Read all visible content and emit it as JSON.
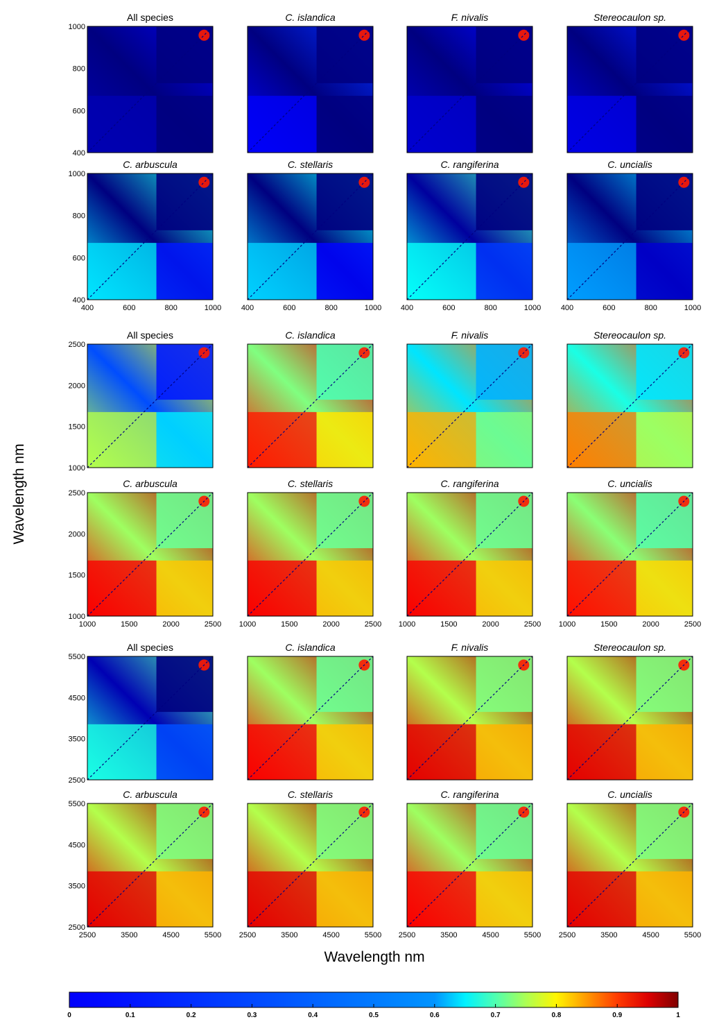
{
  "chart_data": {
    "type": "heatmap",
    "xlabel": "Wavelength nm",
    "ylabel": "Wavelength nm",
    "colorbar": {
      "min": 0,
      "max": 1,
      "ticks": [
        "0",
        "0.1",
        "0.2",
        "0.3",
        "0.4",
        "0.5",
        "0.6",
        "0.7",
        "0.8",
        "0.9",
        "1"
      ],
      "colormap": "jet"
    },
    "panel_titles": [
      "All species",
      "C. islandica",
      "F. nivalis",
      "Stereocaulon sp.",
      "C. arbuscula",
      "C. stellaris",
      "C. rangiferina",
      "C. uncialis"
    ],
    "groups": [
      {
        "range": [
          400,
          1000
        ],
        "yticks": [
          "400",
          "600",
          "800",
          "1000"
        ],
        "xticks": [
          "400",
          "600",
          "800",
          "1000"
        ],
        "panels": [
          {
            "title": "All species",
            "level": 0.05
          },
          {
            "title": "C. islandica",
            "level": 0.12
          },
          {
            "title": "F. nivalis",
            "level": 0.08
          },
          {
            "title": "Stereocaulon sp.",
            "level": 0.1
          },
          {
            "title": "C. arbuscula",
            "level": 0.35
          },
          {
            "title": "C. stellaris",
            "level": 0.33
          },
          {
            "title": "C. rangiferina",
            "level": 0.38
          },
          {
            "title": "C. uncialis",
            "level": 0.28
          }
        ]
      },
      {
        "range": [
          1000,
          2500
        ],
        "yticks": [
          "1000",
          "1500",
          "2000",
          "2500"
        ],
        "xticks": [
          "1000",
          "1500",
          "2000",
          "2500"
        ],
        "panels": [
          {
            "title": "All species",
            "level": 0.55
          },
          {
            "title": "C. islandica",
            "level": 0.85
          },
          {
            "title": "F. nivalis",
            "level": 0.7
          },
          {
            "title": "Stereocaulon sp.",
            "level": 0.75
          },
          {
            "title": "C. arbuscula",
            "level": 0.88
          },
          {
            "title": "C. stellaris",
            "level": 0.88
          },
          {
            "title": "C. rangiferina",
            "level": 0.88
          },
          {
            "title": "C. uncialis",
            "level": 0.86
          }
        ]
      },
      {
        "range": [
          2500,
          5500
        ],
        "yticks": [
          "2500",
          "3500",
          "4500",
          "5500"
        ],
        "xticks": [
          "2500",
          "3500",
          "4500",
          "5500"
        ],
        "panels": [
          {
            "title": "All species",
            "level": 0.4
          },
          {
            "title": "C. islandica",
            "level": 0.88
          },
          {
            "title": "F. nivalis",
            "level": 0.9
          },
          {
            "title": "Stereocaulon sp.",
            "level": 0.9
          },
          {
            "title": "C. arbuscula",
            "level": 0.9
          },
          {
            "title": "C. stellaris",
            "level": 0.9
          },
          {
            "title": "C. rangiferina",
            "level": 0.88
          },
          {
            "title": "C. uncialis",
            "level": 0.9
          }
        ]
      }
    ]
  }
}
